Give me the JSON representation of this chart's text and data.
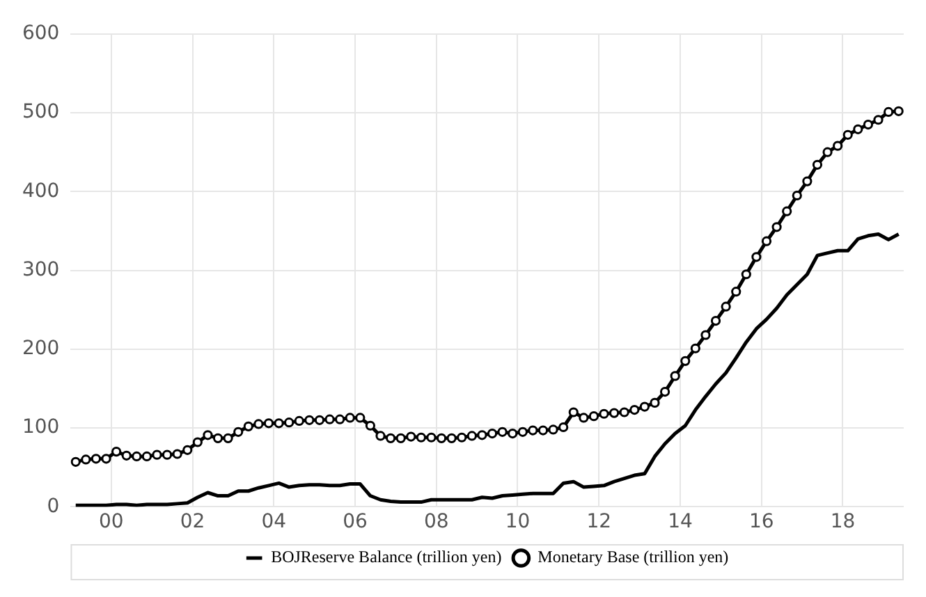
{
  "chart_data": {
    "type": "line",
    "xlim": [
      1999,
      2019.5
    ],
    "ylim": [
      0,
      600
    ],
    "xticks": [
      {
        "value": 2000,
        "label": "00"
      },
      {
        "value": 2002,
        "label": "02"
      },
      {
        "value": 2004,
        "label": "04"
      },
      {
        "value": 2006,
        "label": "06"
      },
      {
        "value": 2008,
        "label": "08"
      },
      {
        "value": 2010,
        "label": "10"
      },
      {
        "value": 2012,
        "label": "12"
      },
      {
        "value": 2014,
        "label": "14"
      },
      {
        "value": 2016,
        "label": "16"
      },
      {
        "value": 2018,
        "label": "18"
      }
    ],
    "yticks": [
      0,
      100,
      200,
      300,
      400,
      500,
      600
    ],
    "grid": true,
    "legend": "bottom",
    "x": [
      1999.125,
      1999.375,
      1999.625,
      1999.875,
      2000.125,
      2000.375,
      2000.625,
      2000.875,
      2001.125,
      2001.375,
      2001.625,
      2001.875,
      2002.125,
      2002.375,
      2002.625,
      2002.875,
      2003.125,
      2003.375,
      2003.625,
      2003.875,
      2004.125,
      2004.375,
      2004.625,
      2004.875,
      2005.125,
      2005.375,
      2005.625,
      2005.875,
      2006.125,
      2006.375,
      2006.625,
      2006.875,
      2007.125,
      2007.375,
      2007.625,
      2007.875,
      2008.125,
      2008.375,
      2008.625,
      2008.875,
      2009.125,
      2009.375,
      2009.625,
      2009.875,
      2010.125,
      2010.375,
      2010.625,
      2010.875,
      2011.125,
      2011.375,
      2011.625,
      2011.875,
      2012.125,
      2012.375,
      2012.625,
      2012.875,
      2013.125,
      2013.375,
      2013.625,
      2013.875,
      2014.125,
      2014.375,
      2014.625,
      2014.875,
      2015.125,
      2015.375,
      2015.625,
      2015.875,
      2016.125,
      2016.375,
      2016.625,
      2016.875,
      2017.125,
      2017.375,
      2017.625,
      2017.875,
      2018.125,
      2018.375,
      2018.625,
      2018.875,
      2019.125,
      2019.375
    ],
    "series": [
      {
        "name": "BOJReserve Balance (trillion yen)",
        "color": "#000000",
        "marker": "none",
        "values": [
          2,
          2,
          2,
          2,
          3,
          3,
          2,
          3,
          3,
          3,
          4,
          5,
          12,
          18,
          14,
          14,
          20,
          20,
          24,
          27,
          30,
          25,
          27,
          28,
          28,
          27,
          27,
          29,
          29,
          14,
          9,
          7,
          6,
          6,
          6,
          9,
          9,
          9,
          9,
          9,
          12,
          11,
          14,
          15,
          16,
          17,
          17,
          17,
          30,
          32,
          25,
          26,
          27,
          32,
          36,
          40,
          42,
          64,
          80,
          93,
          103,
          123,
          140,
          156,
          170,
          189,
          209,
          226,
          238,
          252,
          269,
          282,
          295,
          319,
          322,
          325,
          325,
          340,
          344,
          346,
          339,
          346
        ]
      },
      {
        "name": "Monetary Base (trillion yen)",
        "color": "#000000",
        "marker": "circle",
        "values": [
          57,
          60,
          61,
          61,
          70,
          65,
          64,
          64,
          66,
          66,
          67,
          72,
          82,
          91,
          87,
          87,
          95,
          102,
          105,
          106,
          106,
          107,
          109,
          110,
          110,
          111,
          111,
          113,
          113,
          103,
          90,
          87,
          87,
          89,
          88,
          88,
          87,
          87,
          88,
          90,
          91,
          93,
          95,
          93,
          95,
          97,
          97,
          98,
          101,
          120,
          113,
          115,
          118,
          119,
          120,
          123,
          127,
          132,
          146,
          166,
          185,
          201,
          218,
          236,
          254,
          273,
          295,
          317,
          337,
          355,
          375,
          395,
          413,
          434,
          450,
          458,
          472,
          479,
          485,
          491,
          501,
          502
        ]
      }
    ]
  }
}
